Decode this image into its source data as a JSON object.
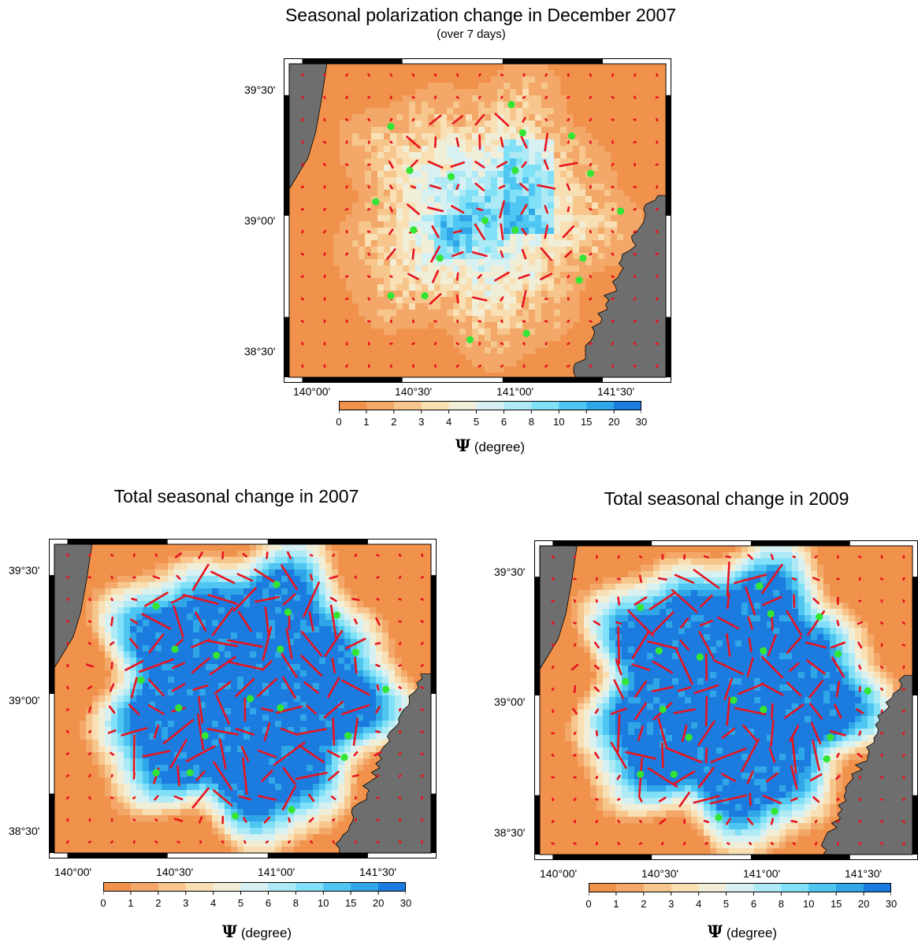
{
  "titles": {
    "top": "Seasonal polarization change in December 2007",
    "top_sub": "(over 7 days)",
    "bottom_left": "Total seasonal change in 2007",
    "bottom_right": "Total seasonal change in 2009"
  },
  "axis": {
    "lat_labels": [
      "39°30'",
      "39°00'",
      "38°30'"
    ],
    "lon_labels": [
      "140°00'",
      "140°30'",
      "141°00'",
      "141°30'"
    ]
  },
  "colorbar": {
    "ticks": [
      "0",
      "1",
      "2",
      "3",
      "4",
      "5",
      "6",
      "8",
      "10",
      "15",
      "20",
      "30"
    ],
    "colors": [
      "#f0924c",
      "#f3a768",
      "#f6c68c",
      "#f8dfb4",
      "#f1eed8",
      "#d7f0f2",
      "#aeeaf6",
      "#7fe0f7",
      "#4fc6f2",
      "#2ea6e8",
      "#1c7bdf"
    ],
    "symbol": "Ψ",
    "unit": "(degree)"
  },
  "map_colors": {
    "land": "#6e6e6e",
    "sea_low": "#f0924c",
    "stick": "#e8141e",
    "station": "#33e633"
  },
  "icons": {
    "station": "green-circle",
    "polarization": "red-stick"
  }
}
